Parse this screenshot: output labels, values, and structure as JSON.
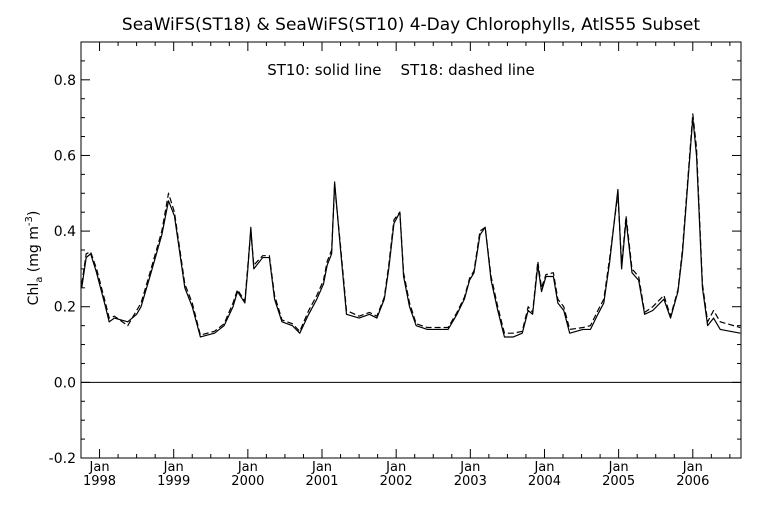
{
  "chart_data": {
    "type": "line",
    "title": "SeaWiFS(ST18) & SeaWiFS(ST10) 4-Day Chlorophylls, AtlS55 Subset",
    "annotation": "ST10: solid line    ST18: dashed line",
    "ylabel": {
      "main": "Chl",
      "sub": "a",
      "units_open": " (mg m",
      "units_exp": "-3",
      "units_close": ")"
    },
    "xlabel": "",
    "xlim": [
      1997.75,
      2006.65
    ],
    "ylim": [
      -0.2,
      0.9
    ],
    "y_ticks": [
      -0.2,
      0.0,
      0.2,
      0.4,
      0.6,
      0.8
    ],
    "y_tick_labels": [
      "-0.2",
      "0.0",
      "0.2",
      "0.4",
      "0.6",
      "0.8"
    ],
    "x_ticks": [
      {
        "x": 1998,
        "month": "Jan",
        "year": "1998"
      },
      {
        "x": 1999,
        "month": "Jan",
        "year": "1999"
      },
      {
        "x": 2000,
        "month": "Jan",
        "year": "2000"
      },
      {
        "x": 2001,
        "month": "Jan",
        "year": "2001"
      },
      {
        "x": 2002,
        "month": "Jan",
        "year": "2002"
      },
      {
        "x": 2003,
        "month": "Jan",
        "year": "2003"
      },
      {
        "x": 2004,
        "month": "Jan",
        "year": "2004"
      },
      {
        "x": 2005,
        "month": "Jan",
        "year": "2005"
      },
      {
        "x": 2006,
        "month": "Jan",
        "year": "2006"
      }
    ],
    "zero_line": 0.0,
    "series": [
      {
        "name": "ST10",
        "style": "solid",
        "color": "#000000",
        "points": [
          [
            1997.76,
            0.25
          ],
          [
            1997.82,
            0.33
          ],
          [
            1997.88,
            0.34
          ],
          [
            1997.96,
            0.29
          ],
          [
            1998.08,
            0.2
          ],
          [
            1998.13,
            0.16
          ],
          [
            1998.2,
            0.17
          ],
          [
            1998.38,
            0.16
          ],
          [
            1998.5,
            0.18
          ],
          [
            1998.56,
            0.2
          ],
          [
            1998.68,
            0.28
          ],
          [
            1998.84,
            0.39
          ],
          [
            1998.93,
            0.48
          ],
          [
            1999.01,
            0.44
          ],
          [
            1999.15,
            0.25
          ],
          [
            1999.25,
            0.2
          ],
          [
            1999.36,
            0.12
          ],
          [
            1999.55,
            0.13
          ],
          [
            1999.68,
            0.15
          ],
          [
            1999.8,
            0.2
          ],
          [
            1999.86,
            0.24
          ],
          [
            1999.96,
            0.21
          ],
          [
            2000.0,
            0.3
          ],
          [
            2000.04,
            0.41
          ],
          [
            2000.08,
            0.3
          ],
          [
            2000.2,
            0.33
          ],
          [
            2000.29,
            0.33
          ],
          [
            2000.36,
            0.22
          ],
          [
            2000.46,
            0.16
          ],
          [
            2000.6,
            0.15
          ],
          [
            2000.7,
            0.13
          ],
          [
            2000.82,
            0.18
          ],
          [
            2000.93,
            0.22
          ],
          [
            2001.02,
            0.26
          ],
          [
            2001.07,
            0.31
          ],
          [
            2001.13,
            0.34
          ],
          [
            2001.17,
            0.53
          ],
          [
            2001.25,
            0.35
          ],
          [
            2001.33,
            0.18
          ],
          [
            2001.5,
            0.17
          ],
          [
            2001.64,
            0.18
          ],
          [
            2001.74,
            0.17
          ],
          [
            2001.84,
            0.22
          ],
          [
            2001.9,
            0.3
          ],
          [
            2001.97,
            0.42
          ],
          [
            2002.05,
            0.45
          ],
          [
            2002.1,
            0.28
          ],
          [
            2002.18,
            0.2
          ],
          [
            2002.27,
            0.15
          ],
          [
            2002.42,
            0.14
          ],
          [
            2002.59,
            0.14
          ],
          [
            2002.7,
            0.14
          ],
          [
            2002.82,
            0.18
          ],
          [
            2002.92,
            0.22
          ],
          [
            2002.99,
            0.27
          ],
          [
            2003.05,
            0.29
          ],
          [
            2003.13,
            0.39
          ],
          [
            2003.2,
            0.41
          ],
          [
            2003.28,
            0.27
          ],
          [
            2003.37,
            0.19
          ],
          [
            2003.46,
            0.12
          ],
          [
            2003.58,
            0.12
          ],
          [
            2003.7,
            0.13
          ],
          [
            2003.78,
            0.19
          ],
          [
            2003.84,
            0.18
          ],
          [
            2003.91,
            0.31
          ],
          [
            2003.96,
            0.24
          ],
          [
            2004.02,
            0.28
          ],
          [
            2004.12,
            0.28
          ],
          [
            2004.18,
            0.21
          ],
          [
            2004.26,
            0.19
          ],
          [
            2004.34,
            0.13
          ],
          [
            2004.52,
            0.14
          ],
          [
            2004.62,
            0.14
          ],
          [
            2004.72,
            0.18
          ],
          [
            2004.8,
            0.21
          ],
          [
            2004.88,
            0.32
          ],
          [
            2004.99,
            0.51
          ],
          [
            2005.04,
            0.3
          ],
          [
            2005.1,
            0.43
          ],
          [
            2005.18,
            0.29
          ],
          [
            2005.27,
            0.27
          ],
          [
            2005.35,
            0.18
          ],
          [
            2005.46,
            0.19
          ],
          [
            2005.61,
            0.22
          ],
          [
            2005.7,
            0.17
          ],
          [
            2005.8,
            0.24
          ],
          [
            2005.86,
            0.34
          ],
          [
            2005.93,
            0.52
          ],
          [
            2006.0,
            0.7
          ],
          [
            2006.05,
            0.6
          ],
          [
            2006.13,
            0.25
          ],
          [
            2006.2,
            0.15
          ],
          [
            2006.28,
            0.17
          ],
          [
            2006.37,
            0.14
          ],
          [
            2006.64,
            0.13
          ]
        ]
      },
      {
        "name": "ST18",
        "style": "dashed",
        "color": "#000000",
        "points": [
          [
            1997.76,
            0.26
          ],
          [
            1997.82,
            0.34
          ],
          [
            1997.88,
            0.345
          ],
          [
            1997.96,
            0.3
          ],
          [
            1998.08,
            0.21
          ],
          [
            1998.13,
            0.17
          ],
          [
            1998.2,
            0.175
          ],
          [
            1998.38,
            0.15
          ],
          [
            1998.5,
            0.19
          ],
          [
            1998.56,
            0.21
          ],
          [
            1998.68,
            0.29
          ],
          [
            1998.84,
            0.4
          ],
          [
            1998.93,
            0.5
          ],
          [
            1999.01,
            0.45
          ],
          [
            1999.15,
            0.26
          ],
          [
            1999.25,
            0.21
          ],
          [
            1999.36,
            0.125
          ],
          [
            1999.55,
            0.135
          ],
          [
            1999.68,
            0.155
          ],
          [
            1999.8,
            0.21
          ],
          [
            1999.86,
            0.245
          ],
          [
            1999.96,
            0.215
          ],
          [
            2000.0,
            0.31
          ],
          [
            2000.04,
            0.4
          ],
          [
            2000.08,
            0.31
          ],
          [
            2000.2,
            0.335
          ],
          [
            2000.29,
            0.335
          ],
          [
            2000.36,
            0.23
          ],
          [
            2000.46,
            0.165
          ],
          [
            2000.6,
            0.155
          ],
          [
            2000.7,
            0.135
          ],
          [
            2000.82,
            0.19
          ],
          [
            2000.93,
            0.23
          ],
          [
            2001.02,
            0.27
          ],
          [
            2001.07,
            0.32
          ],
          [
            2001.13,
            0.35
          ],
          [
            2001.17,
            0.52
          ],
          [
            2001.25,
            0.36
          ],
          [
            2001.33,
            0.19
          ],
          [
            2001.5,
            0.175
          ],
          [
            2001.64,
            0.185
          ],
          [
            2001.74,
            0.175
          ],
          [
            2001.84,
            0.225
          ],
          [
            2001.9,
            0.31
          ],
          [
            2001.97,
            0.43
          ],
          [
            2002.05,
            0.45
          ],
          [
            2002.1,
            0.29
          ],
          [
            2002.18,
            0.21
          ],
          [
            2002.27,
            0.155
          ],
          [
            2002.42,
            0.145
          ],
          [
            2002.59,
            0.145
          ],
          [
            2002.7,
            0.145
          ],
          [
            2002.82,
            0.185
          ],
          [
            2002.92,
            0.225
          ],
          [
            2002.99,
            0.275
          ],
          [
            2003.05,
            0.295
          ],
          [
            2003.13,
            0.4
          ],
          [
            2003.2,
            0.41
          ],
          [
            2003.28,
            0.28
          ],
          [
            2003.37,
            0.2
          ],
          [
            2003.46,
            0.13
          ],
          [
            2003.58,
            0.13
          ],
          [
            2003.7,
            0.135
          ],
          [
            2003.78,
            0.2
          ],
          [
            2003.84,
            0.185
          ],
          [
            2003.91,
            0.32
          ],
          [
            2003.96,
            0.25
          ],
          [
            2004.02,
            0.285
          ],
          [
            2004.12,
            0.29
          ],
          [
            2004.18,
            0.22
          ],
          [
            2004.26,
            0.2
          ],
          [
            2004.34,
            0.14
          ],
          [
            2004.52,
            0.145
          ],
          [
            2004.62,
            0.15
          ],
          [
            2004.72,
            0.19
          ],
          [
            2004.8,
            0.22
          ],
          [
            2004.88,
            0.33
          ],
          [
            2004.99,
            0.5
          ],
          [
            2005.04,
            0.31
          ],
          [
            2005.1,
            0.44
          ],
          [
            2005.18,
            0.3
          ],
          [
            2005.27,
            0.28
          ],
          [
            2005.35,
            0.185
          ],
          [
            2005.46,
            0.2
          ],
          [
            2005.61,
            0.23
          ],
          [
            2005.7,
            0.175
          ],
          [
            2005.8,
            0.245
          ],
          [
            2005.86,
            0.35
          ],
          [
            2005.93,
            0.53
          ],
          [
            2006.0,
            0.71
          ],
          [
            2006.05,
            0.62
          ],
          [
            2006.13,
            0.26
          ],
          [
            2006.2,
            0.16
          ],
          [
            2006.28,
            0.19
          ],
          [
            2006.37,
            0.16
          ],
          [
            2006.64,
            0.145
          ]
        ]
      }
    ]
  }
}
